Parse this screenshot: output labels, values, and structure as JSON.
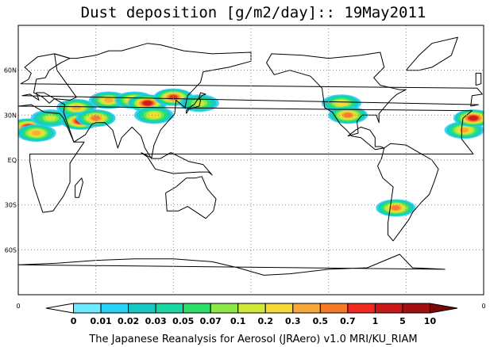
{
  "title": "Dust deposition [g/m2/day]:: 19May2011",
  "footer": "The Japanese Reanalysis for Aerosol (JRAero) v1.0 MRI/KU_RIAM",
  "lat_ticks": [
    "60N",
    "30N",
    "EQ",
    "30S",
    "60S"
  ],
  "lat_values": [
    60,
    30,
    0,
    -30,
    -60
  ],
  "colorbar": {
    "left_end_label": "0",
    "right_end_label": "0",
    "labels": [
      "0",
      "0.01",
      "0.02",
      "0.03",
      "0.05",
      "0.07",
      "0.1",
      "0.2",
      "0.3",
      "0.5",
      "0.7",
      "1",
      "5",
      "10"
    ],
    "colors": [
      "#ffffff",
      "#6eebff",
      "#2bd0f5",
      "#16c7c2",
      "#1ad6a0",
      "#2ee06a",
      "#8ee84a",
      "#cfe83a",
      "#f4d93a",
      "#f6a93a",
      "#f47a2a",
      "#f02a20",
      "#c81818",
      "#a01010",
      "#7a0a0a"
    ]
  },
  "chart_data": {
    "type": "heatmap",
    "title": "Dust deposition [g/m2/day]:: 19May2011",
    "variable": "Dust deposition",
    "units": "g/m2/day",
    "date": "19May2011",
    "projection": "lat-lon, Pacific-centered",
    "lon_range": [
      0,
      360
    ],
    "lat_range": [
      -90,
      90
    ],
    "y_ticks": [
      "60N",
      "30N",
      "EQ",
      "30S",
      "60S"
    ],
    "colorbar_levels": [
      0,
      0.01,
      0.02,
      0.03,
      0.05,
      0.07,
      0.1,
      0.2,
      0.3,
      0.5,
      0.7,
      1,
      5,
      10
    ],
    "regions": [
      {
        "lon": 8,
        "lat": 22,
        "value": 1
      },
      {
        "lon": 14,
        "lat": 18,
        "value": 0.3
      },
      {
        "lon": 25,
        "lat": 28,
        "value": 0.1
      },
      {
        "lon": 45,
        "lat": 35,
        "value": 0.3
      },
      {
        "lon": 48,
        "lat": 26,
        "value": 1
      },
      {
        "lon": 60,
        "lat": 28,
        "value": 0.5
      },
      {
        "lon": 70,
        "lat": 40,
        "value": 0.3
      },
      {
        "lon": 90,
        "lat": 40,
        "value": 0.5
      },
      {
        "lon": 100,
        "lat": 38,
        "value": 1
      },
      {
        "lon": 105,
        "lat": 30,
        "value": 0.2
      },
      {
        "lon": 120,
        "lat": 42,
        "value": 0.7
      },
      {
        "lon": 140,
        "lat": 38,
        "value": 0.1
      },
      {
        "lon": 250,
        "lat": 38,
        "value": 0.2
      },
      {
        "lon": 255,
        "lat": 30,
        "value": 0.5
      },
      {
        "lon": 292,
        "lat": -32,
        "value": 0.5
      },
      {
        "lon": 345,
        "lat": 20,
        "value": 0.3
      },
      {
        "lon": 352,
        "lat": 28,
        "value": 1
      }
    ]
  }
}
